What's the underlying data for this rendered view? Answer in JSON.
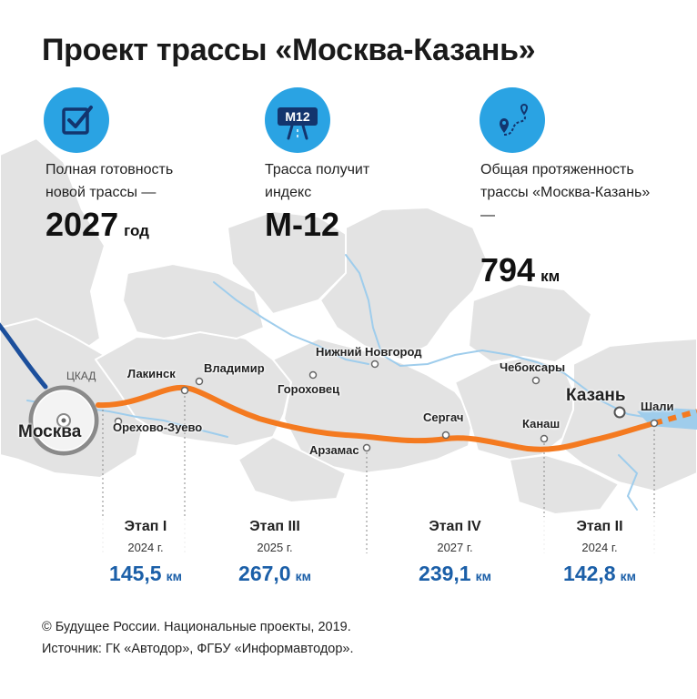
{
  "title": "Проект трассы «Москва-Казань»",
  "stats": [
    {
      "icon": "checkbox-icon",
      "label": "Полная готовность новой трассы —",
      "value": "2027",
      "unit": "год"
    },
    {
      "icon": "highway-sign-icon",
      "badge": "M12",
      "label": "Трасса получит индекс",
      "value": "М-12",
      "unit": ""
    },
    {
      "icon": "route-pin-icon",
      "label": "Общая протяженность трассы «Москва-Казань» —",
      "value": "794",
      "unit": "км"
    }
  ],
  "map": {
    "ring_label": "ЦКАД",
    "cities": {
      "moscow": "Москва",
      "lakinsk": "Лакинск",
      "vladimir": "Владимир",
      "orekhovo": "Орехово-Зуево",
      "nizhny": "Нижний Новгород",
      "gorokhovets": "Гороховец",
      "arzamas": "Арзамас",
      "sergach": "Сергач",
      "cheboksary": "Чебоксары",
      "kazan": "Казань",
      "kanash": "Канаш",
      "shali": "Шали"
    },
    "colors": {
      "route": "#f47a20",
      "ring": "#1c4f9c",
      "regions": "#e3e3e3",
      "borders": "#ffffff",
      "water": "#9fcdec",
      "accent": "#2aa3e3"
    }
  },
  "stages": [
    {
      "name": "Этап I",
      "year": "2024 г.",
      "length": "145,5",
      "unit": "км"
    },
    {
      "name": "Этап III",
      "year": "2025 г.",
      "length": "267,0",
      "unit": "км"
    },
    {
      "name": "Этап IV",
      "year": "2027 г.",
      "length": "239,1",
      "unit": "км"
    },
    {
      "name": "Этап II",
      "year": "2024 г.",
      "length": "142,8",
      "unit": "км"
    }
  ],
  "footer": {
    "copyright": "© Будущее России. Национальные проекты, 2019.",
    "source": "Источник: ГК «Автодор», ФГБУ «Информавтодор»."
  }
}
